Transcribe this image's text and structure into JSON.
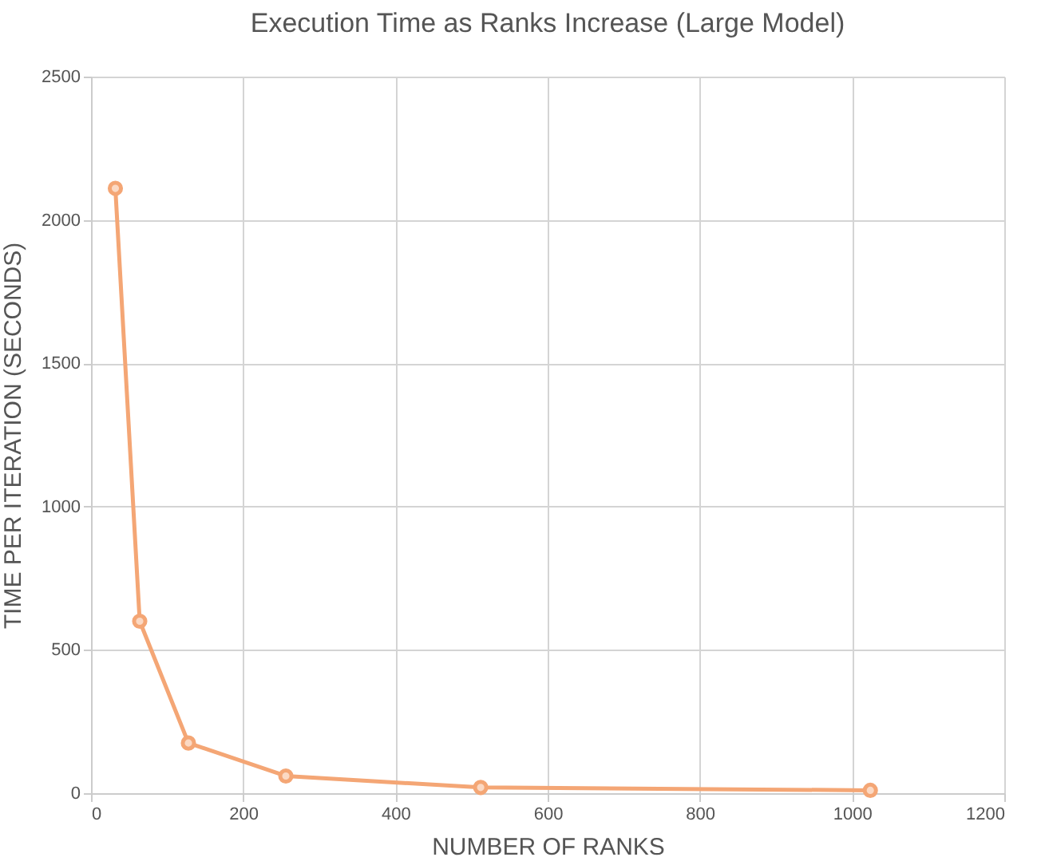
{
  "chart_data": {
    "type": "line",
    "title": "Execution Time as Ranks Increase (Large Model)",
    "xlabel": "NUMBER OF RANKS",
    "ylabel": "TIME PER ITERATION (SECONDS)",
    "x": [
      32,
      64,
      128,
      256,
      512,
      1024
    ],
    "series": [
      {
        "color": "#f4a675",
        "values": [
          2110,
          600,
          175,
          60,
          20,
          10
        ]
      }
    ],
    "xlim": [
      0,
      1200
    ],
    "xticks": [
      0,
      200,
      400,
      600,
      800,
      1000,
      1200
    ],
    "ylim": [
      0,
      2500
    ],
    "yticks": [
      0,
      500,
      1000,
      1500,
      2000,
      2500
    ],
    "grid": true,
    "marker": "circle",
    "line_style": "solid"
  }
}
